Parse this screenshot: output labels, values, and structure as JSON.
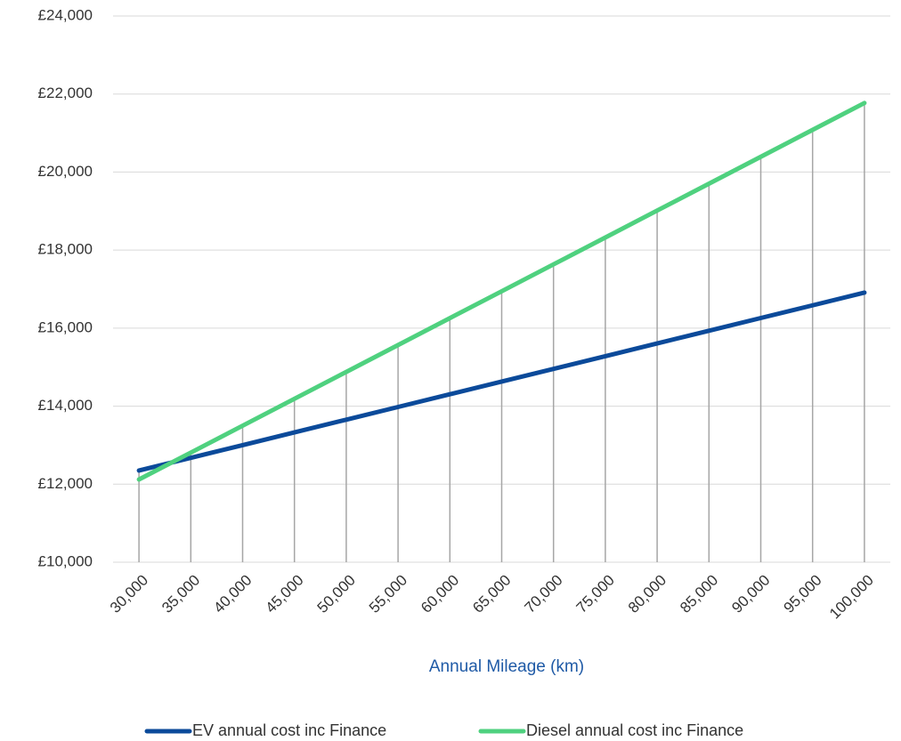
{
  "chart_data": {
    "type": "line",
    "x_label": "Annual Mileage (km)",
    "categories": [
      "30,000",
      "35,000",
      "40,000",
      "45,000",
      "50,000",
      "55,000",
      "60,000",
      "65,000",
      "70,000",
      "75,000",
      "80,000",
      "85,000",
      "90,000",
      "95,000",
      "100,000"
    ],
    "series": [
      {
        "name": "EV annual cost inc Finance",
        "color": "#0b4a9a",
        "values": [
          12350,
          12676,
          13001,
          13327,
          13653,
          13979,
          14304,
          14630,
          14956,
          15281,
          15607,
          15933,
          16259,
          16584,
          16910
        ]
      },
      {
        "name": "Diesel annual cost inc Finance",
        "color": "#4fd17f",
        "values": [
          12120,
          12809,
          13499,
          14188,
          14877,
          15566,
          16256,
          16945,
          17634,
          18323,
          19013,
          19702,
          20391,
          21081,
          21770
        ]
      }
    ],
    "ylim": [
      10000,
      24000
    ],
    "yticks": [
      {
        "value": 10000,
        "label": "£10,000"
      },
      {
        "value": 12000,
        "label": "£12,000"
      },
      {
        "value": 14000,
        "label": "£14,000"
      },
      {
        "value": 16000,
        "label": "£16,000"
      },
      {
        "value": 18000,
        "label": "£18,000"
      },
      {
        "value": 20000,
        "label": "£20,000"
      },
      {
        "value": 22000,
        "label": "£22,000"
      },
      {
        "value": 24000,
        "label": "£24,000"
      }
    ],
    "grid": true,
    "drop_lines": true,
    "legend": "bottom"
  }
}
